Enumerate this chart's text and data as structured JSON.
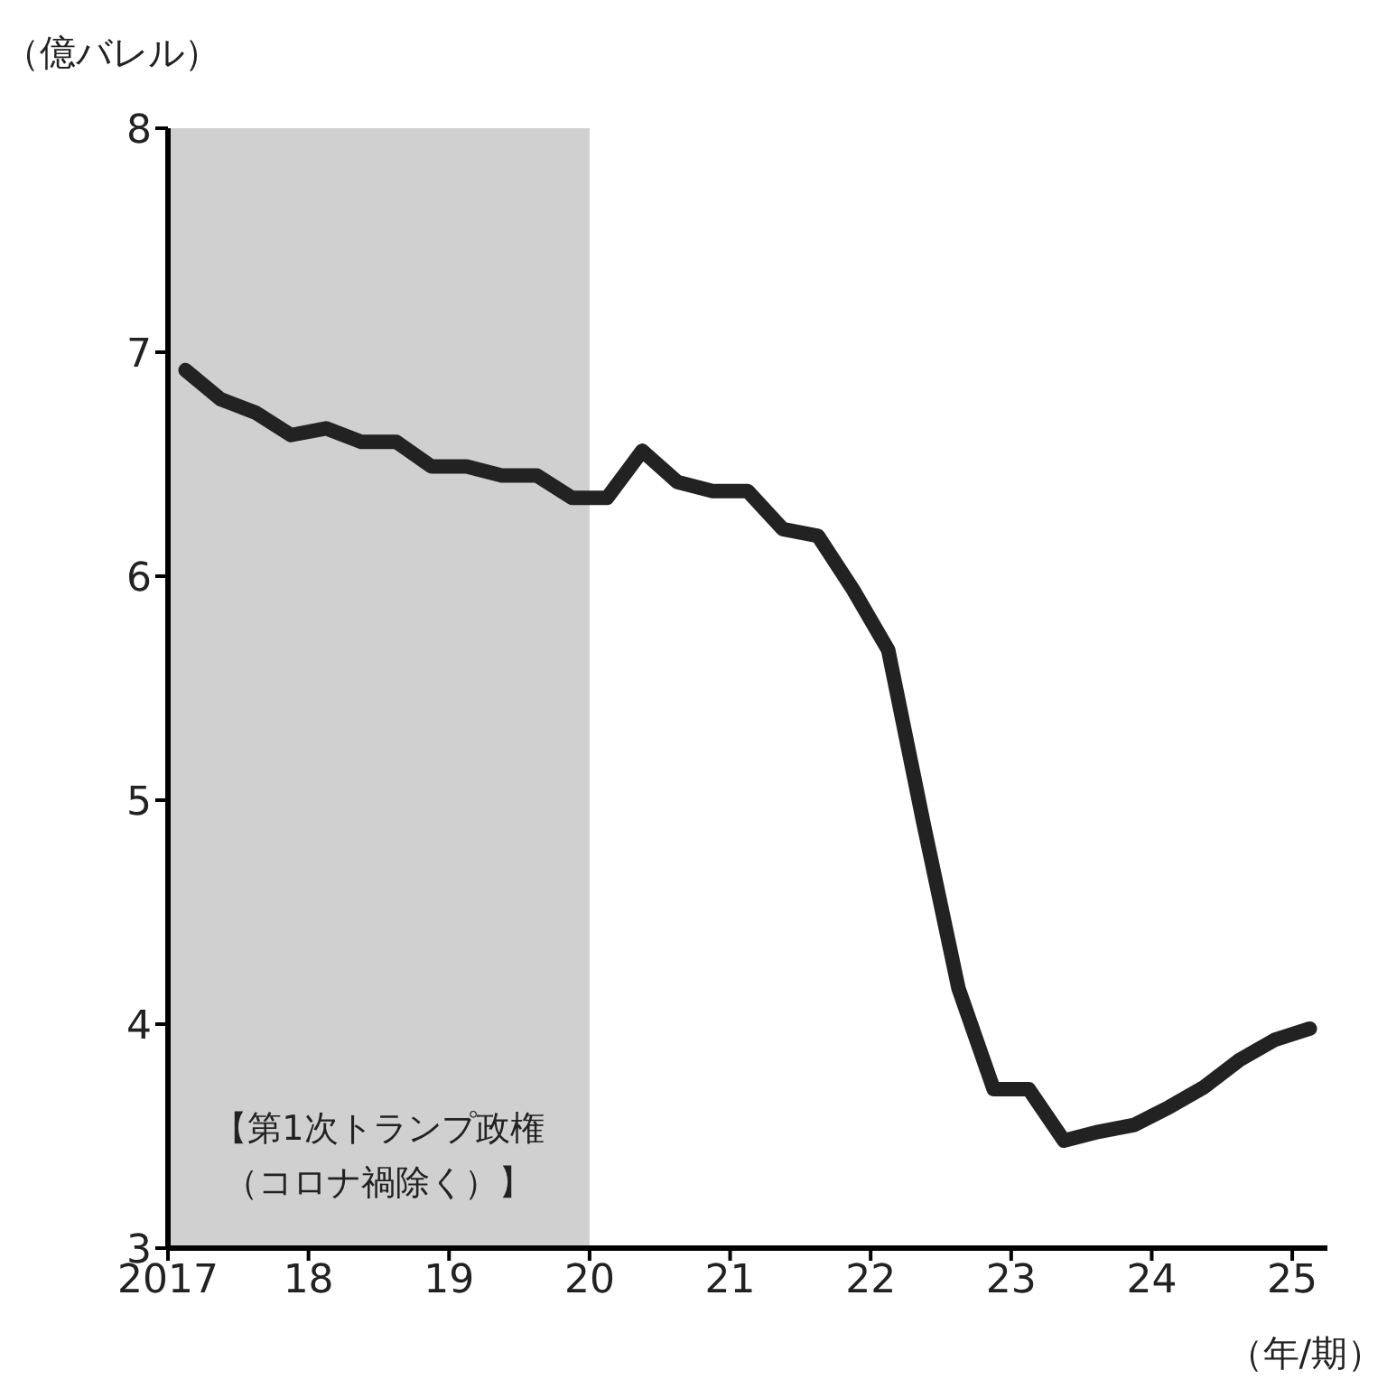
{
  "chart_data": {
    "type": "line",
    "ylabel": "（億バレル）",
    "xlabel": "（年/期）",
    "x": [
      2017.125,
      2017.375,
      2017.625,
      2017.875,
      2018.125,
      2018.375,
      2018.625,
      2018.875,
      2019.125,
      2019.375,
      2019.625,
      2019.875,
      2020.125,
      2020.375,
      2020.625,
      2020.875,
      2021.125,
      2021.375,
      2021.625,
      2021.875,
      2022.125,
      2022.375,
      2022.625,
      2022.875,
      2023.125,
      2023.375,
      2023.625,
      2023.875,
      2024.125,
      2024.375,
      2024.625,
      2024.875,
      2025.125
    ],
    "series": [
      {
        "color": "#222222",
        "values": [
          6.92,
          6.79,
          6.73,
          6.63,
          6.66,
          6.6,
          6.6,
          6.49,
          6.49,
          6.45,
          6.45,
          6.35,
          6.35,
          6.56,
          6.42,
          6.38,
          6.38,
          6.21,
          6.18,
          5.94,
          5.67,
          4.9,
          4.16,
          3.71,
          3.71,
          3.48,
          3.52,
          3.55,
          3.63,
          3.72,
          3.84,
          3.93,
          3.98
        ]
      }
    ],
    "xlim": [
      2017,
      2025.25
    ],
    "xticks": [
      2017,
      {
        "value": 2018,
        "label": "18"
      },
      {
        "value": 2019,
        "label": "19"
      },
      {
        "value": 2020,
        "label": "20"
      },
      {
        "value": 2021,
        "label": "21"
      },
      {
        "value": 2022,
        "label": "22"
      },
      {
        "value": 2023,
        "label": "23"
      },
      {
        "value": 2024,
        "label": "24"
      },
      {
        "value": 2025,
        "label": "25"
      }
    ],
    "ylim": [
      3,
      8
    ],
    "yticks": [
      3,
      4,
      5,
      6,
      7,
      8
    ],
    "bands": [
      {
        "axis": "x",
        "from": 2017,
        "to": 2020,
        "label": "【第1次トランプ政権（コロナ禍除く）】",
        "color": "#d0d0d0"
      }
    ],
    "grid": false,
    "legend": false,
    "marker": "none",
    "line_style": "solid"
  }
}
